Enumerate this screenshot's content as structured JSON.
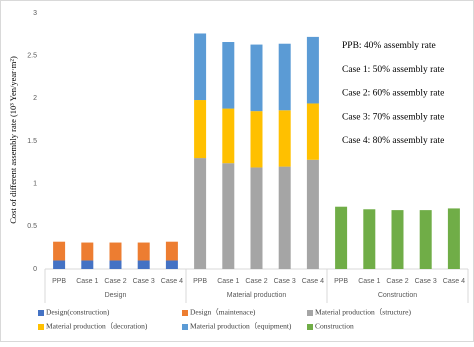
{
  "chart_data": {
    "type": "stacked-bar",
    "ylabel": "Cost of different assembly rate (10³ Yen/year·m²)",
    "groups": [
      "Design",
      "Material production",
      "Construction"
    ],
    "categories": [
      "PPB",
      "Case 1",
      "Case 2",
      "Case 3",
      "Case 4",
      "PPB",
      "Case 1",
      "Case 2",
      "Case 3",
      "Case 4",
      "PPB",
      "Case 1",
      "Case 2",
      "Case 3",
      "Case 4"
    ],
    "series": [
      {
        "name": "Design(construction)",
        "color": "#4472c4",
        "values": [
          0.1,
          0.1,
          0.1,
          0.1,
          0.1,
          null,
          null,
          null,
          null,
          null,
          null,
          null,
          null,
          null,
          null
        ]
      },
      {
        "name": "Design（maintenace)",
        "color": "#ed7d31",
        "values": [
          0.22,
          0.21,
          0.21,
          0.21,
          0.22,
          null,
          null,
          null,
          null,
          null,
          null,
          null,
          null,
          null,
          null
        ]
      },
      {
        "name": "Material production（structure)",
        "color": "#a5a5a5",
        "values": [
          null,
          null,
          null,
          null,
          null,
          1.3,
          1.24,
          1.19,
          1.2,
          1.28,
          null,
          null,
          null,
          null,
          null
        ]
      },
      {
        "name": "Material production（decoration)",
        "color": "#ffc000",
        "values": [
          null,
          null,
          null,
          null,
          null,
          0.68,
          0.64,
          0.66,
          0.66,
          0.66,
          null,
          null,
          null,
          null,
          null
        ]
      },
      {
        "name": "Material production（equipment)",
        "color": "#5b9bd5",
        "values": [
          null,
          null,
          null,
          null,
          null,
          0.78,
          0.78,
          0.78,
          0.78,
          0.78,
          null,
          null,
          null,
          null,
          null
        ]
      },
      {
        "name": "Construction",
        "color": "#70ad47",
        "values": [
          null,
          null,
          null,
          null,
          null,
          null,
          null,
          null,
          null,
          null,
          0.73,
          0.7,
          0.69,
          0.69,
          0.71
        ]
      }
    ],
    "annotations": [
      "PPB: 40% assembly rate",
      "Case 1: 50% assembly rate",
      "Case 2: 60% assembly rate",
      "Case 3: 70% assembly rate",
      "Case 4: 80% assembly rate"
    ],
    "ylim": [
      0,
      3
    ],
    "yticks": [
      0,
      0.5,
      1,
      1.5,
      2,
      2.5,
      3
    ]
  }
}
